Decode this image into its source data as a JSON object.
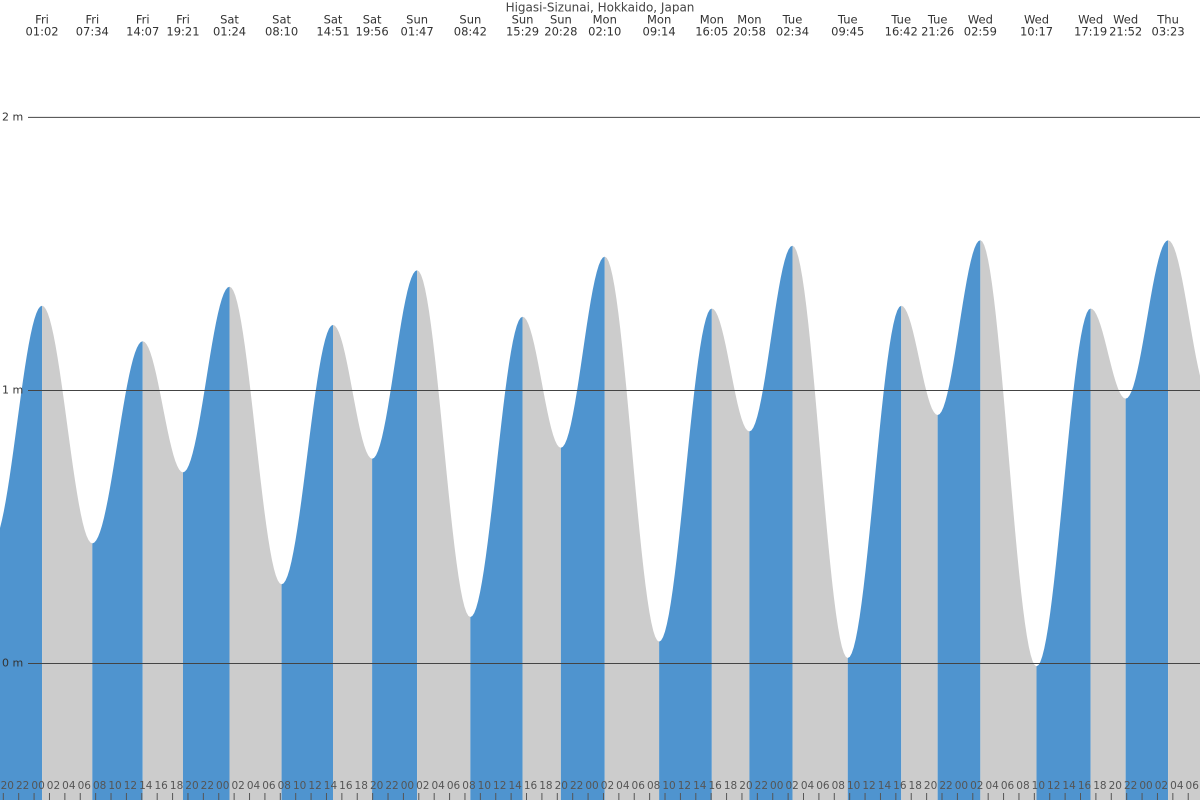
{
  "chart_data": {
    "type": "tide",
    "title": "Higasi-Sizunai, Hokkaido, Japan",
    "days": [
      "Fri",
      "Fri",
      "Fri",
      "Fri",
      "Sat",
      "Sat",
      "Sat",
      "Sat",
      "Sun",
      "Sun",
      "Sun",
      "Sun",
      "Mon",
      "Mon",
      "Mon",
      "Mon",
      "Tue",
      "Tue",
      "Tue",
      "Tue",
      "Wed",
      "Wed",
      "Wed",
      "Wed",
      "Thu"
    ],
    "times": [
      "01:02",
      "07:34",
      "14:07",
      "19:21",
      "01:24",
      "08:10",
      "14:51",
      "19:56",
      "01:47",
      "08:42",
      "15:29",
      "20:28",
      "02:10",
      "09:14",
      "16:05",
      "20:58",
      "02:34",
      "09:45",
      "16:42",
      "21:26",
      "02:59",
      "10:17",
      "17:19",
      "21:52",
      "03:23"
    ],
    "heights": [
      1.31,
      0.44,
      1.18,
      0.7,
      1.38,
      0.29,
      1.24,
      0.75,
      1.44,
      0.17,
      1.27,
      0.79,
      1.49,
      0.08,
      1.3,
      0.85,
      1.53,
      0.02,
      1.31,
      0.91,
      1.55,
      -0.01,
      1.3,
      0.97,
      1.55
    ],
    "rise_color": "#4f94cf",
    "fall_color": "#cccccc",
    "xlim": [
      -4.43,
      151.53
    ],
    "xticks": [
      {
        "value": -4,
        "label": "20"
      },
      {
        "value": -2,
        "label": "22"
      },
      {
        "value": 0,
        "label": "00"
      },
      {
        "value": 2,
        "label": "02"
      },
      {
        "value": 4,
        "label": "04"
      },
      {
        "value": 6,
        "label": "06"
      },
      {
        "value": 8,
        "label": "08"
      },
      {
        "value": 10,
        "label": "10"
      },
      {
        "value": 12,
        "label": "12"
      },
      {
        "value": 14,
        "label": "14"
      },
      {
        "value": 16,
        "label": "16"
      },
      {
        "value": 18,
        "label": "18"
      },
      {
        "value": 20,
        "label": "20"
      },
      {
        "value": 22,
        "label": "22"
      },
      {
        "value": 24,
        "label": "00"
      },
      {
        "value": 26,
        "label": "02"
      },
      {
        "value": 28,
        "label": "04"
      },
      {
        "value": 30,
        "label": "06"
      },
      {
        "value": 32,
        "label": "08"
      },
      {
        "value": 34,
        "label": "10"
      },
      {
        "value": 36,
        "label": "12"
      },
      {
        "value": 38,
        "label": "14"
      },
      {
        "value": 40,
        "label": "16"
      },
      {
        "value": 42,
        "label": "18"
      },
      {
        "value": 44,
        "label": "20"
      },
      {
        "value": 46,
        "label": "22"
      },
      {
        "value": 48,
        "label": "00"
      },
      {
        "value": 50,
        "label": "02"
      },
      {
        "value": 52,
        "label": "04"
      },
      {
        "value": 54,
        "label": "06"
      },
      {
        "value": 56,
        "label": "08"
      },
      {
        "value": 58,
        "label": "10"
      },
      {
        "value": 60,
        "label": "12"
      },
      {
        "value": 62,
        "label": "14"
      },
      {
        "value": 64,
        "label": "16"
      },
      {
        "value": 66,
        "label": "18"
      },
      {
        "value": 68,
        "label": "20"
      },
      {
        "value": 70,
        "label": "22"
      },
      {
        "value": 72,
        "label": "00"
      },
      {
        "value": 74,
        "label": "02"
      },
      {
        "value": 76,
        "label": "04"
      },
      {
        "value": 78,
        "label": "06"
      },
      {
        "value": 80,
        "label": "08"
      },
      {
        "value": 82,
        "label": "10"
      },
      {
        "value": 84,
        "label": "12"
      },
      {
        "value": 86,
        "label": "14"
      },
      {
        "value": 88,
        "label": "16"
      },
      {
        "value": 90,
        "label": "18"
      },
      {
        "value": 92,
        "label": "20"
      },
      {
        "value": 94,
        "label": "22"
      },
      {
        "value": 96,
        "label": "00"
      },
      {
        "value": 98,
        "label": "02"
      },
      {
        "value": 100,
        "label": "04"
      },
      {
        "value": 102,
        "label": "06"
      },
      {
        "value": 104,
        "label": "08"
      },
      {
        "value": 106,
        "label": "10"
      },
      {
        "value": 108,
        "label": "12"
      },
      {
        "value": 110,
        "label": "14"
      },
      {
        "value": 112,
        "label": "16"
      },
      {
        "value": 114,
        "label": "18"
      },
      {
        "value": 116,
        "label": "20"
      },
      {
        "value": 118,
        "label": "22"
      },
      {
        "value": 120,
        "label": "00"
      },
      {
        "value": 122,
        "label": "02"
      },
      {
        "value": 124,
        "label": "04"
      },
      {
        "value": 126,
        "label": "06"
      },
      {
        "value": 128,
        "label": "08"
      },
      {
        "value": 130,
        "label": "10"
      },
      {
        "value": 132,
        "label": "12"
      },
      {
        "value": 134,
        "label": "14"
      },
      {
        "value": 136,
        "label": "16"
      },
      {
        "value": 138,
        "label": "18"
      },
      {
        "value": 140,
        "label": "20"
      },
      {
        "value": 142,
        "label": "22"
      },
      {
        "value": 144,
        "label": "00"
      },
      {
        "value": 146,
        "label": "02"
      },
      {
        "value": 148,
        "label": "04"
      },
      {
        "value": 150,
        "label": "06"
      }
    ],
    "ylim": [
      -0.5,
      2.43
    ],
    "yticks": [
      {
        "value": 0,
        "label": "0 m"
      },
      {
        "value": 1,
        "label": "1 m"
      },
      {
        "value": 2,
        "label": "2 m"
      }
    ],
    "grid": true
  }
}
